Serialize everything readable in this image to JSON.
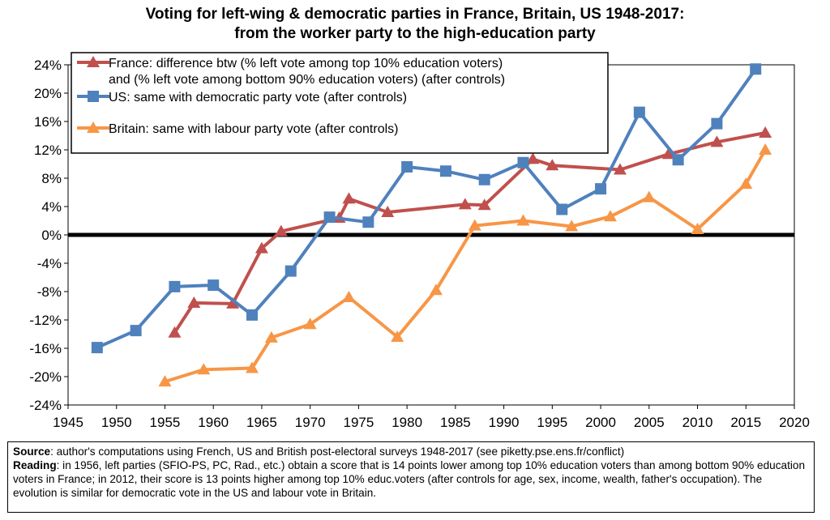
{
  "chart_data": {
    "type": "line",
    "title_line1": "Voting for left-wing & democratic parties in France, Britain, US 1948-2017:",
    "title_line2": "from the worker party to the high-education party",
    "xlim": [
      1945,
      2020
    ],
    "ylim": [
      -24,
      24
    ],
    "x_ticks": [
      1945,
      1950,
      1955,
      1960,
      1965,
      1970,
      1975,
      1980,
      1985,
      1990,
      1995,
      2000,
      2005,
      2010,
      2015,
      2020
    ],
    "y_ticks": [
      -24,
      -20,
      -16,
      -12,
      -8,
      -4,
      0,
      4,
      8,
      12,
      16,
      20,
      24
    ],
    "y_tick_labels": [
      "-24%",
      "-20%",
      "-16%",
      "-12%",
      "-8%",
      "-4%",
      "0%",
      "4%",
      "8%",
      "12%",
      "16%",
      "20%",
      "24%"
    ],
    "legend": {
      "position": "top-left",
      "entries": [
        {
          "line1": "France: difference btw (% left vote among top 10% education voters)",
          "line2": "and (% left vote among bottom 90% education voters) (after controls)"
        },
        {
          "line1": "US: same with democratic party vote (after controls)"
        },
        {
          "line1": "Britain: same with labour party vote (after controls)"
        }
      ]
    },
    "series": [
      {
        "name": "France",
        "color": "#c0504d",
        "marker": "triangle",
        "x": [
          1956,
          1958,
          1962,
          1965,
          1967,
          1973,
          1974,
          1978,
          1986,
          1988,
          1993,
          1995,
          2002,
          2007,
          2012,
          2017
        ],
        "y": [
          -13.8,
          -9.6,
          -9.7,
          -1.9,
          0.5,
          2.4,
          5.1,
          3.2,
          4.3,
          4.2,
          10.7,
          9.8,
          9.2,
          11.4,
          13.1,
          14.4
        ]
      },
      {
        "name": "US",
        "color": "#4f81bd",
        "marker": "square",
        "x": [
          1948,
          1952,
          1956,
          1960,
          1964,
          1968,
          1972,
          1976,
          1980,
          1984,
          1988,
          1992,
          1996,
          2000,
          2004,
          2008,
          2012,
          2016
        ],
        "y": [
          -15.9,
          -13.5,
          -7.3,
          -7.1,
          -11.3,
          -5.1,
          2.5,
          1.8,
          9.6,
          9.0,
          7.8,
          10.2,
          3.6,
          6.5,
          17.3,
          10.6,
          15.7,
          23.4
        ]
      },
      {
        "name": "Britain",
        "color": "#f79646",
        "marker": "triangle",
        "x": [
          1955,
          1959,
          1964,
          1966,
          1970,
          1974,
          1979,
          1983,
          1987,
          1992,
          1997,
          2001,
          2005,
          2010,
          2015,
          2017
        ],
        "y": [
          -20.7,
          -19.0,
          -18.8,
          -14.5,
          -12.6,
          -8.8,
          -14.4,
          -7.8,
          1.3,
          2.0,
          1.2,
          2.6,
          5.3,
          0.8,
          7.2,
          12.0
        ]
      }
    ],
    "zero_line_color": "#000000",
    "grid": false
  },
  "note": {
    "source_label": "Source",
    "source_text": ": author's computations using French, US and British post-electoral surveys 1948-2017 (see piketty.pse.ens.fr/conflict)",
    "reading_label": "Reading",
    "reading_text": ": in 1956, left parties (SFIO-PS, PC, Rad., etc.) obtain a score that is 14 points lower among top 10% education voters than among bottom 90% education voters in France; in 2012, their score is 13 points higher among top 10% educ.voters (after controls for age, sex, income, wealth, father's occupation). The evolution is similar for democratic vote in the US and labour vote in Britain."
  }
}
